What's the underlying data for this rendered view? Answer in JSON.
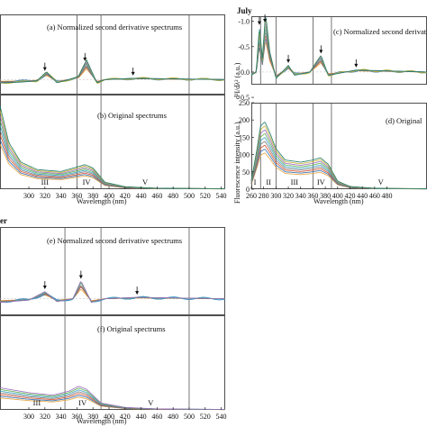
{
  "figure": {
    "left_heading": "er",
    "right_heading": "July"
  },
  "chart_data": [
    {
      "id": "a",
      "type": "line",
      "label": "(a) Normalized second derivative spectrums",
      "xlabel": "",
      "ylabel": "",
      "xlim": [
        264,
        545
      ],
      "ylim": [
        0.3,
        -1.3
      ],
      "x_ticks": [],
      "y_ticks": [],
      "dividers": [
        360,
        390,
        500
      ],
      "arrows": [
        320,
        370,
        430
      ],
      "series_count": 9,
      "peaks": [
        {
          "x": 322,
          "y": -0.12
        },
        {
          "x": 372,
          "y": -0.3
        }
      ],
      "curve": [
        [
          264,
          0.05
        ],
        [
          290,
          0.04
        ],
        [
          310,
          0.02
        ],
        [
          322,
          -0.12
        ],
        [
          335,
          0.05
        ],
        [
          350,
          0.0
        ],
        [
          362,
          -0.05
        ],
        [
          372,
          -0.3
        ],
        [
          385,
          0.05
        ],
        [
          395,
          0.0
        ],
        [
          430,
          -0.02
        ],
        [
          545,
          0.0
        ]
      ]
    },
    {
      "id": "b",
      "type": "line",
      "label": "(b) Original spectrums",
      "xlabel": "Wavelength (nm)",
      "ylabel": "",
      "xlim": [
        264,
        545
      ],
      "ylim": [
        0,
        250
      ],
      "x_ticks": [
        "300",
        "320",
        "340",
        "360",
        "380",
        "400",
        "420",
        "440",
        "460",
        "480",
        "500",
        "520",
        "540"
      ],
      "y_ticks": [],
      "dividers": [
        360,
        390,
        500
      ],
      "regions": [
        {
          "label": "III",
          "x": 320
        },
        {
          "label": "IV",
          "x": 372
        },
        {
          "label": "V",
          "x": 445
        }
      ],
      "series_count": 9,
      "curve": [
        [
          264,
          170
        ],
        [
          275,
          95
        ],
        [
          290,
          55
        ],
        [
          310,
          40
        ],
        [
          340,
          36
        ],
        [
          360,
          45
        ],
        [
          370,
          50
        ],
        [
          380,
          43
        ],
        [
          395,
          14
        ],
        [
          420,
          5
        ],
        [
          460,
          2
        ],
        [
          545,
          1
        ]
      ]
    },
    {
      "id": "c",
      "type": "line",
      "label": "(c) Normalized second derivative spectrums",
      "xlabel": "",
      "ylabel": "d²I/dλ² (a.u.)",
      "xlim": [
        260,
        545
      ],
      "ylim": [
        0.25,
        -1.1
      ],
      "x_ticks": [],
      "y_ticks": [
        "-1.0",
        "-0.5",
        "0.0",
        "0.5"
      ],
      "dividers": [
        275,
        300,
        360,
        390
      ],
      "arrows": [
        273,
        282,
        320,
        373,
        430
      ],
      "series_count": 9,
      "curve": [
        [
          260,
          0.05
        ],
        [
          268,
          0.0
        ],
        [
          273,
          -0.7
        ],
        [
          278,
          -0.2
        ],
        [
          283,
          -0.9
        ],
        [
          290,
          -0.3
        ],
        [
          300,
          0.1
        ],
        [
          310,
          0.0
        ],
        [
          320,
          -0.1
        ],
        [
          330,
          0.05
        ],
        [
          355,
          0.0
        ],
        [
          373,
          -0.25
        ],
        [
          385,
          0.05
        ],
        [
          430,
          -0.03
        ],
        [
          545,
          0.0
        ]
      ]
    },
    {
      "id": "d",
      "type": "line",
      "label": "(d) Original",
      "xlabel": "Wavelength (nm)",
      "ylabel": "Fluorescence intensity (a.u.)",
      "xlim": [
        260,
        545
      ],
      "ylim": [
        0,
        250
      ],
      "x_ticks": [
        "260",
        "280",
        "300",
        "320",
        "340",
        "360",
        "380",
        "400",
        "420",
        "440",
        "460",
        "480"
      ],
      "y_ticks": [
        "0",
        "50",
        "100",
        "150",
        "200",
        "250"
      ],
      "dividers": [
        275,
        300,
        360,
        390
      ],
      "regions": [
        {
          "label": "I",
          "x": 266
        },
        {
          "label": "II",
          "x": 288
        },
        {
          "label": "III",
          "x": 330
        },
        {
          "label": "IV",
          "x": 373
        },
        {
          "label": "V",
          "x": 470
        }
      ],
      "series_count": 9,
      "curve": [
        [
          260,
          20
        ],
        [
          268,
          80
        ],
        [
          275,
          140
        ],
        [
          282,
          150
        ],
        [
          290,
          125
        ],
        [
          300,
          90
        ],
        [
          315,
          65
        ],
        [
          340,
          60
        ],
        [
          360,
          65
        ],
        [
          372,
          70
        ],
        [
          385,
          55
        ],
        [
          400,
          18
        ],
        [
          420,
          6
        ],
        [
          460,
          2
        ],
        [
          545,
          1
        ]
      ]
    },
    {
      "id": "e",
      "type": "line",
      "label": "(e) Normalized second derivative spectrums",
      "xlabel": "",
      "ylabel": "",
      "xlim": [
        264,
        545
      ],
      "ylim": [
        0.3,
        -1.3
      ],
      "x_ticks": [],
      "y_ticks": [],
      "dividers": [
        345,
        390,
        500
      ],
      "arrows": [
        320,
        365,
        435
      ],
      "series_count": 7,
      "curve": [
        [
          264,
          0.05
        ],
        [
          300,
          0.02
        ],
        [
          320,
          -0.1
        ],
        [
          335,
          0.04
        ],
        [
          355,
          0.0
        ],
        [
          365,
          -0.25
        ],
        [
          378,
          0.05
        ],
        [
          395,
          0.0
        ],
        [
          435,
          -0.02
        ],
        [
          545,
          0.0
        ]
      ]
    },
    {
      "id": "f",
      "type": "line",
      "label": "(f) Original spectrums",
      "xlabel": "Wavelength (nm)",
      "ylabel": "",
      "xlim": [
        264,
        545
      ],
      "ylim": [
        0,
        250
      ],
      "x_ticks": [
        "300",
        "320",
        "340",
        "360",
        "380",
        "400",
        "420",
        "440",
        "460",
        "480",
        "500",
        "520",
        "540"
      ],
      "y_ticks": [],
      "dividers": [
        345,
        390,
        500
      ],
      "regions": [
        {
          "label": "III",
          "x": 310
        },
        {
          "label": "IV",
          "x": 367
        },
        {
          "label": "V",
          "x": 452
        }
      ],
      "series_count": 7,
      "curve": [
        [
          264,
          45
        ],
        [
          300,
          35
        ],
        [
          330,
          30
        ],
        [
          350,
          38
        ],
        [
          362,
          48
        ],
        [
          372,
          42
        ],
        [
          390,
          14
        ],
        [
          420,
          5
        ],
        [
          460,
          2
        ],
        [
          545,
          1
        ]
      ]
    }
  ],
  "colors": {
    "series": [
      "#e8a23a",
      "#2f6fb3",
      "#d8502a",
      "#7a7a7a",
      "#3aa3c8",
      "#5fae4a",
      "#9a6cc0",
      "#c9b133",
      "#1c7a6a"
    ],
    "axis": "#222222",
    "divider": "#555555"
  }
}
